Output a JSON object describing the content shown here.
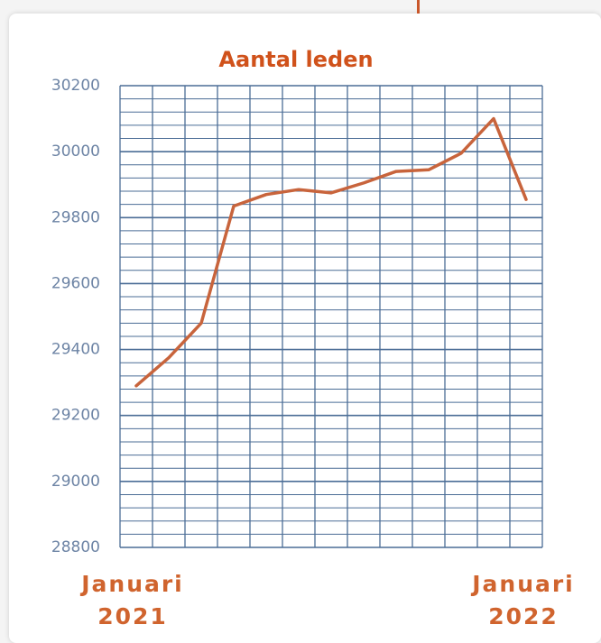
{
  "chart_data": {
    "type": "line",
    "title": "Aantal leden",
    "categories": [
      "Januari 2021",
      null,
      null,
      null,
      null,
      null,
      null,
      null,
      null,
      null,
      null,
      null,
      "Januari 2022"
    ],
    "series": [
      {
        "name": "Aantal leden",
        "color": "#c8643c",
        "values": [
          29290,
          29375,
          29480,
          29835,
          29870,
          29885,
          29875,
          29905,
          29940,
          29945,
          29995,
          30100,
          29855
        ]
      }
    ],
    "ylim": [
      28800,
      30200
    ],
    "yticks": [
      28800,
      29000,
      29200,
      29400,
      29600,
      29800,
      30000,
      30200
    ],
    "yminorticks": [
      28840,
      28880,
      28920,
      28960,
      29040,
      29080,
      29120,
      29160,
      29240,
      29280,
      29320,
      29360,
      29440,
      29480,
      29520,
      29560,
      29640,
      29680,
      29720,
      29760,
      29840,
      29880,
      29920,
      29960,
      30040,
      30080,
      30120,
      30160
    ],
    "grid": true
  }
}
